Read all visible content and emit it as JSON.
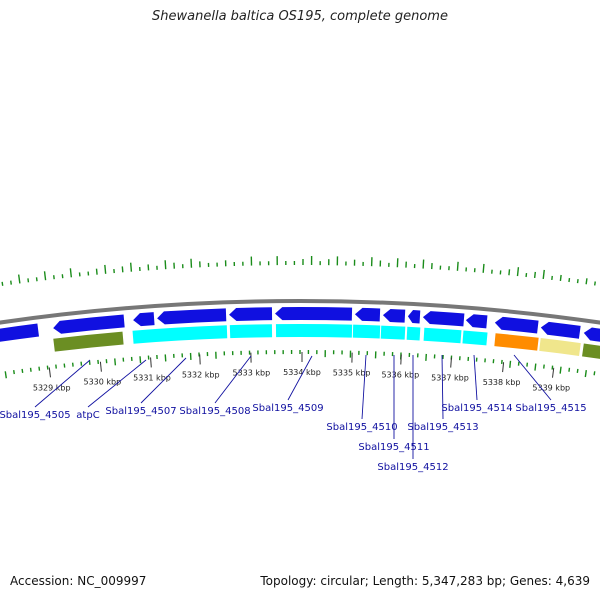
{
  "title": "Shewanella baltica OS195, complete genome",
  "footer": {
    "accession": "Accession: NC_009997",
    "summary": "Topology: circular; Length: 5,347,283 bp; Genes: 4,639"
  },
  "scale_labels": [
    "5329 kbp",
    "5330 kbp",
    "5331 kbp",
    "5332 kbp",
    "5333 kbp",
    "5334 kbp",
    "5335 kbp",
    "5336 kbp",
    "5337 kbp",
    "5338 kbp",
    "5339 kbp"
  ],
  "gene_labels": [
    "Sbal195_4505",
    "atpC",
    "Sbal195_4507",
    "Sbal195_4508",
    "Sbal195_4509",
    "Sbal195_4510",
    "Sbal195_4511",
    "Sbal195_4512",
    "Sbal195_4513",
    "Sbal195_4514",
    "Sbal195_4515"
  ],
  "colors": {
    "backbone": "#777777",
    "cds_forward": "#1010e0",
    "cds_reverse": "#00ffff",
    "cog_olive": "#6b8e23",
    "cog_orange": "#ff8c00",
    "cog_khaki": "#f0e68c",
    "gc_ticks": "#1a8c1a",
    "labels": "#1010a0"
  }
}
